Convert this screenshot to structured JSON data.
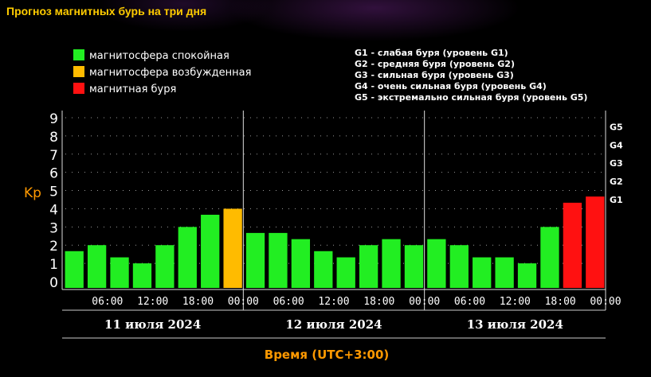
{
  "page": {
    "title": "Прогноз магнитных бурь на три дня"
  },
  "legend": {
    "items": [
      {
        "label": "магнитосфера спокойная",
        "color": "#22ee22"
      },
      {
        "label": "магнитосфера возбужденная",
        "color": "#ffbb00"
      },
      {
        "label": "магнитная буря",
        "color": "#ff1111"
      }
    ],
    "g_levels": [
      "G1 - слабая буря (уровень G1)",
      "G2 - средняя буря (уровень G2)",
      "G3 - сильная буря (уровень G3)",
      "G4 - очень сильная буря (уровень G4)",
      "G5 - экстремально сильная буря (уровень G5)"
    ]
  },
  "chart_data": {
    "type": "bar",
    "title": "Прогноз магнитных бурь на три дня",
    "ylabel": "Kp",
    "xlabel": "Время (UTC+3:00)",
    "ylim": [
      0,
      9
    ],
    "yticks": [
      "0",
      "1",
      "2",
      "3",
      "4",
      "5",
      "6",
      "7",
      "8",
      "9"
    ],
    "g_ticks": [
      {
        "label": "G1",
        "kp": 5
      },
      {
        "label": "G2",
        "kp": 6
      },
      {
        "label": "G3",
        "kp": 7
      },
      {
        "label": "G4",
        "kp": 8
      },
      {
        "label": "G5",
        "kp": 9
      }
    ],
    "time_ticks": [
      "06:00",
      "12:00",
      "18:00",
      "00:00",
      "06:00",
      "12:00",
      "18:00",
      "00:00",
      "06:00",
      "12:00",
      "18:00",
      "00:00"
    ],
    "days": [
      "11 июля 2024",
      "12 июля 2024",
      "13 июля 2024"
    ],
    "grid": true,
    "values": [
      1.67,
      2.0,
      1.33,
      1.0,
      2.0,
      3.0,
      3.67,
      4.0,
      2.67,
      2.67,
      2.33,
      1.67,
      1.33,
      2.0,
      2.33,
      2.0,
      2.33,
      2.0,
      1.33,
      1.33,
      1.0,
      3.0,
      4.33,
      4.67
    ],
    "colors": [
      "#22ee22",
      "#22ee22",
      "#22ee22",
      "#22ee22",
      "#22ee22",
      "#22ee22",
      "#22ee22",
      "#ffbb00",
      "#22ee22",
      "#22ee22",
      "#22ee22",
      "#22ee22",
      "#22ee22",
      "#22ee22",
      "#22ee22",
      "#22ee22",
      "#22ee22",
      "#22ee22",
      "#22ee22",
      "#22ee22",
      "#22ee22",
      "#22ee22",
      "#ff1111",
      "#ff1111"
    ]
  }
}
